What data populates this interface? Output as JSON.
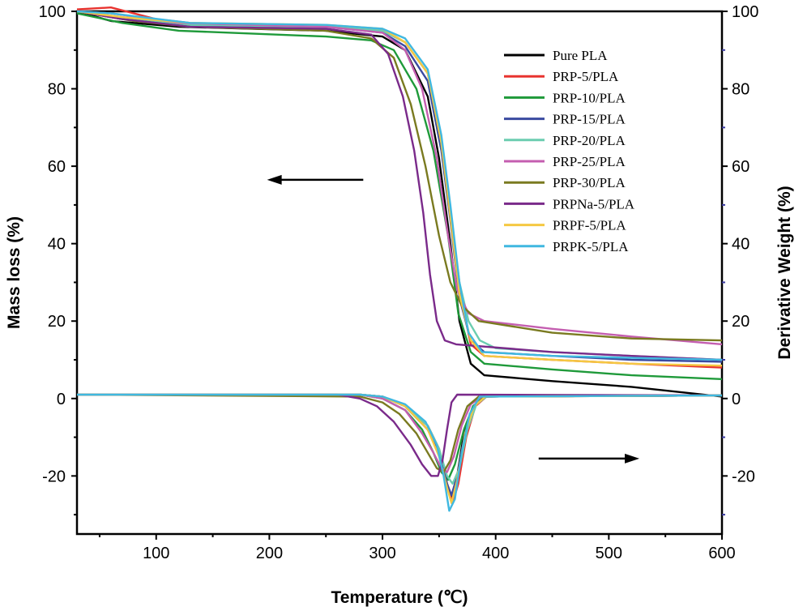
{
  "chart_data": {
    "type": "line",
    "title": "",
    "xlabel": "Temperature (℃)",
    "ylabel_left": "Mass loss (%)",
    "ylabel_right": "Derivative Weight (%)",
    "xlim": [
      30,
      600
    ],
    "ylim_left": [
      -35,
      100
    ],
    "ylim_right": [
      -35,
      100
    ],
    "x_ticks": [
      100,
      200,
      300,
      400,
      500,
      600
    ],
    "y_ticks_left": [
      -20,
      0,
      20,
      40,
      60,
      80,
      100
    ],
    "y_ticks_right": [
      -20,
      0,
      20,
      40,
      60,
      80,
      100
    ],
    "grid": false,
    "legend_position": "top-right",
    "annotations": [
      {
        "type": "arrow",
        "direction": "left",
        "meaning": "left axis (Mass loss)",
        "from": [
          283,
          56.5
        ],
        "to": [
          198,
          56.5
        ]
      },
      {
        "type": "arrow",
        "direction": "right",
        "meaning": "right axis (Derivative Weight)",
        "from": [
          438,
          -15.5
        ],
        "to": [
          527,
          -15.5
        ]
      }
    ],
    "series": [
      {
        "name": "Pure PLA",
        "color": "#000000",
        "tg": [
          [
            30,
            100
          ],
          [
            60,
            97.5
          ],
          [
            120,
            96
          ],
          [
            250,
            95
          ],
          [
            300,
            93.5
          ],
          [
            320,
            90
          ],
          [
            340,
            78
          ],
          [
            350,
            62
          ],
          [
            360,
            40
          ],
          [
            368,
            20
          ],
          [
            378,
            9
          ],
          [
            390,
            6
          ],
          [
            450,
            4.5
          ],
          [
            520,
            3
          ],
          [
            600,
            0.5
          ]
        ],
        "dtg": [
          [
            30,
            1
          ],
          [
            280,
            1
          ],
          [
            300,
            0.5
          ],
          [
            320,
            -2
          ],
          [
            340,
            -8
          ],
          [
            350,
            -14
          ],
          [
            357,
            -22
          ],
          [
            361,
            -25.5
          ],
          [
            366,
            -20
          ],
          [
            372,
            -9
          ],
          [
            380,
            -2
          ],
          [
            390,
            0.5
          ],
          [
            600,
            0.8
          ]
        ]
      },
      {
        "name": "PRP-5/PLA",
        "color": "#e8332f",
        "tg": [
          [
            30,
            100.5
          ],
          [
            60,
            101
          ],
          [
            100,
            98
          ],
          [
            130,
            97
          ],
          [
            250,
            96
          ],
          [
            300,
            95
          ],
          [
            320,
            92
          ],
          [
            340,
            84
          ],
          [
            350,
            70
          ],
          [
            360,
            48
          ],
          [
            368,
            28
          ],
          [
            378,
            14
          ],
          [
            390,
            11
          ],
          [
            450,
            10
          ],
          [
            520,
            9
          ],
          [
            600,
            8
          ]
        ],
        "dtg": [
          [
            30,
            1
          ],
          [
            280,
            1
          ],
          [
            300,
            0.5
          ],
          [
            320,
            -2
          ],
          [
            340,
            -7
          ],
          [
            350,
            -13
          ],
          [
            357,
            -22
          ],
          [
            362,
            -27
          ],
          [
            367,
            -22
          ],
          [
            374,
            -10
          ],
          [
            382,
            -2
          ],
          [
            392,
            0.5
          ],
          [
            600,
            0.8
          ]
        ]
      },
      {
        "name": "PRP-10/PLA",
        "color": "#1f9a3a",
        "tg": [
          [
            30,
            99.5
          ],
          [
            70,
            97
          ],
          [
            120,
            95
          ],
          [
            250,
            93.5
          ],
          [
            290,
            92.5
          ],
          [
            310,
            90
          ],
          [
            330,
            80
          ],
          [
            345,
            64
          ],
          [
            358,
            42
          ],
          [
            367,
            22
          ],
          [
            378,
            12
          ],
          [
            390,
            9
          ],
          [
            450,
            7.5
          ],
          [
            520,
            6
          ],
          [
            600,
            5
          ]
        ],
        "dtg": [
          [
            30,
            1
          ],
          [
            280,
            1
          ],
          [
            300,
            0
          ],
          [
            320,
            -3
          ],
          [
            335,
            -8
          ],
          [
            345,
            -14
          ],
          [
            352,
            -19
          ],
          [
            358,
            -21
          ],
          [
            364,
            -17
          ],
          [
            372,
            -8
          ],
          [
            380,
            -2
          ],
          [
            390,
            0.5
          ],
          [
            600,
            0.8
          ]
        ]
      },
      {
        "name": "PRP-15/PLA",
        "color": "#3a4aa0",
        "tg": [
          [
            30,
            100
          ],
          [
            70,
            98
          ],
          [
            130,
            96.5
          ],
          [
            250,
            96
          ],
          [
            300,
            94.5
          ],
          [
            320,
            91
          ],
          [
            340,
            82
          ],
          [
            352,
            64
          ],
          [
            360,
            46
          ],
          [
            368,
            26
          ],
          [
            378,
            15
          ],
          [
            390,
            12
          ],
          [
            450,
            11
          ],
          [
            520,
            10
          ],
          [
            600,
            9.5
          ]
        ],
        "dtg": [
          [
            30,
            1
          ],
          [
            280,
            1
          ],
          [
            300,
            0.5
          ],
          [
            320,
            -2
          ],
          [
            340,
            -8
          ],
          [
            350,
            -14
          ],
          [
            357,
            -22
          ],
          [
            361,
            -25
          ],
          [
            366,
            -20
          ],
          [
            373,
            -9
          ],
          [
            381,
            -2
          ],
          [
            391,
            0.5
          ],
          [
            600,
            0.8
          ]
        ]
      },
      {
        "name": "PRP-20/PLA",
        "color": "#6bcdb0",
        "tg": [
          [
            30,
            100
          ],
          [
            70,
            98.5
          ],
          [
            130,
            96.5
          ],
          [
            250,
            96
          ],
          [
            300,
            95
          ],
          [
            320,
            92
          ],
          [
            340,
            84
          ],
          [
            352,
            66
          ],
          [
            360,
            48
          ],
          [
            368,
            30
          ],
          [
            376,
            20
          ],
          [
            386,
            15
          ],
          [
            400,
            13
          ],
          [
            450,
            12
          ],
          [
            520,
            11
          ],
          [
            600,
            10
          ]
        ],
        "dtg": [
          [
            30,
            1
          ],
          [
            280,
            1
          ],
          [
            300,
            0.5
          ],
          [
            320,
            -2
          ],
          [
            340,
            -7
          ],
          [
            350,
            -13
          ],
          [
            357,
            -20
          ],
          [
            362,
            -22
          ],
          [
            368,
            -18
          ],
          [
            375,
            -8
          ],
          [
            383,
            -1.5
          ],
          [
            392,
            0.5
          ],
          [
            600,
            0.8
          ]
        ]
      },
      {
        "name": "PRP-25/PLA",
        "color": "#c45eb0",
        "tg": [
          [
            30,
            100
          ],
          [
            60,
            99.5
          ],
          [
            120,
            97
          ],
          [
            250,
            96
          ],
          [
            300,
            94.5
          ],
          [
            320,
            90
          ],
          [
            335,
            80
          ],
          [
            348,
            62
          ],
          [
            358,
            42
          ],
          [
            366,
            28
          ],
          [
            376,
            22
          ],
          [
            390,
            20
          ],
          [
            450,
            18
          ],
          [
            520,
            16
          ],
          [
            600,
            14
          ]
        ],
        "dtg": [
          [
            30,
            1
          ],
          [
            280,
            1
          ],
          [
            300,
            0
          ],
          [
            320,
            -3
          ],
          [
            335,
            -9
          ],
          [
            345,
            -14
          ],
          [
            352,
            -18
          ],
          [
            357,
            -19
          ],
          [
            363,
            -15
          ],
          [
            370,
            -7
          ],
          [
            378,
            -1.5
          ],
          [
            388,
            0.5
          ],
          [
            600,
            0.8
          ]
        ]
      },
      {
        "name": "PRP-30/PLA",
        "color": "#7a7a20",
        "tg": [
          [
            30,
            100
          ],
          [
            80,
            97.5
          ],
          [
            130,
            96
          ],
          [
            250,
            95
          ],
          [
            290,
            93
          ],
          [
            310,
            88
          ],
          [
            325,
            76
          ],
          [
            338,
            60
          ],
          [
            350,
            42
          ],
          [
            360,
            30
          ],
          [
            370,
            24
          ],
          [
            385,
            20
          ],
          [
            450,
            17
          ],
          [
            520,
            15.5
          ],
          [
            600,
            15
          ]
        ],
        "dtg": [
          [
            30,
            1
          ],
          [
            280,
            0.5
          ],
          [
            300,
            -1
          ],
          [
            315,
            -4
          ],
          [
            330,
            -9
          ],
          [
            340,
            -14
          ],
          [
            348,
            -18
          ],
          [
            354,
            -19
          ],
          [
            360,
            -16
          ],
          [
            367,
            -8
          ],
          [
            375,
            -2
          ],
          [
            385,
            0.5
          ],
          [
            600,
            0.8
          ]
        ]
      },
      {
        "name": "PRPNa-5/PLA",
        "color": "#7a2a8a",
        "tg": [
          [
            30,
            100
          ],
          [
            70,
            98
          ],
          [
            130,
            96
          ],
          [
            250,
            95.5
          ],
          [
            290,
            94
          ],
          [
            305,
            89
          ],
          [
            318,
            78
          ],
          [
            328,
            64
          ],
          [
            336,
            48
          ],
          [
            342,
            32
          ],
          [
            348,
            20
          ],
          [
            355,
            15
          ],
          [
            365,
            14
          ],
          [
            450,
            12
          ],
          [
            520,
            11
          ],
          [
            600,
            10
          ]
        ],
        "dtg": [
          [
            30,
            1
          ],
          [
            260,
            1
          ],
          [
            280,
            0
          ],
          [
            295,
            -2
          ],
          [
            310,
            -6
          ],
          [
            325,
            -12
          ],
          [
            335,
            -17
          ],
          [
            343,
            -20
          ],
          [
            349,
            -20
          ],
          [
            353,
            -16
          ],
          [
            357,
            -8
          ],
          [
            361,
            -1
          ],
          [
            366,
            1
          ],
          [
            600,
            0.8
          ]
        ]
      },
      {
        "name": "PRPF-5/PLA",
        "color": "#f5c842",
        "tg": [
          [
            30,
            100
          ],
          [
            70,
            98.5
          ],
          [
            130,
            97
          ],
          [
            250,
            96.5
          ],
          [
            300,
            95.5
          ],
          [
            320,
            92
          ],
          [
            340,
            84
          ],
          [
            352,
            66
          ],
          [
            360,
            47
          ],
          [
            368,
            27
          ],
          [
            378,
            15
          ],
          [
            390,
            11
          ],
          [
            450,
            10
          ],
          [
            520,
            9
          ],
          [
            600,
            8.5
          ]
        ],
        "dtg": [
          [
            30,
            1
          ],
          [
            280,
            1
          ],
          [
            300,
            0.5
          ],
          [
            320,
            -2
          ],
          [
            340,
            -8
          ],
          [
            350,
            -15
          ],
          [
            357,
            -23
          ],
          [
            361,
            -27
          ],
          [
            366,
            -21
          ],
          [
            373,
            -9
          ],
          [
            381,
            -2
          ],
          [
            391,
            0.5
          ],
          [
            600,
            0.8
          ]
        ]
      },
      {
        "name": "PRPK-5/PLA",
        "color": "#40b8e0",
        "tg": [
          [
            30,
            100
          ],
          [
            60,
            99.5
          ],
          [
            130,
            97
          ],
          [
            250,
            96.5
          ],
          [
            300,
            95.5
          ],
          [
            320,
            93
          ],
          [
            340,
            85
          ],
          [
            352,
            68
          ],
          [
            360,
            50
          ],
          [
            368,
            30
          ],
          [
            376,
            17
          ],
          [
            388,
            12
          ],
          [
            450,
            11
          ],
          [
            520,
            10.5
          ],
          [
            600,
            10
          ]
        ],
        "dtg": [
          [
            30,
            1
          ],
          [
            280,
            1
          ],
          [
            300,
            0.5
          ],
          [
            320,
            -1.5
          ],
          [
            338,
            -6
          ],
          [
            348,
            -12
          ],
          [
            354,
            -20
          ],
          [
            359,
            -29
          ],
          [
            364,
            -26
          ],
          [
            370,
            -14
          ],
          [
            377,
            -4
          ],
          [
            386,
            0.5
          ],
          [
            600,
            0.8
          ]
        ]
      }
    ]
  }
}
